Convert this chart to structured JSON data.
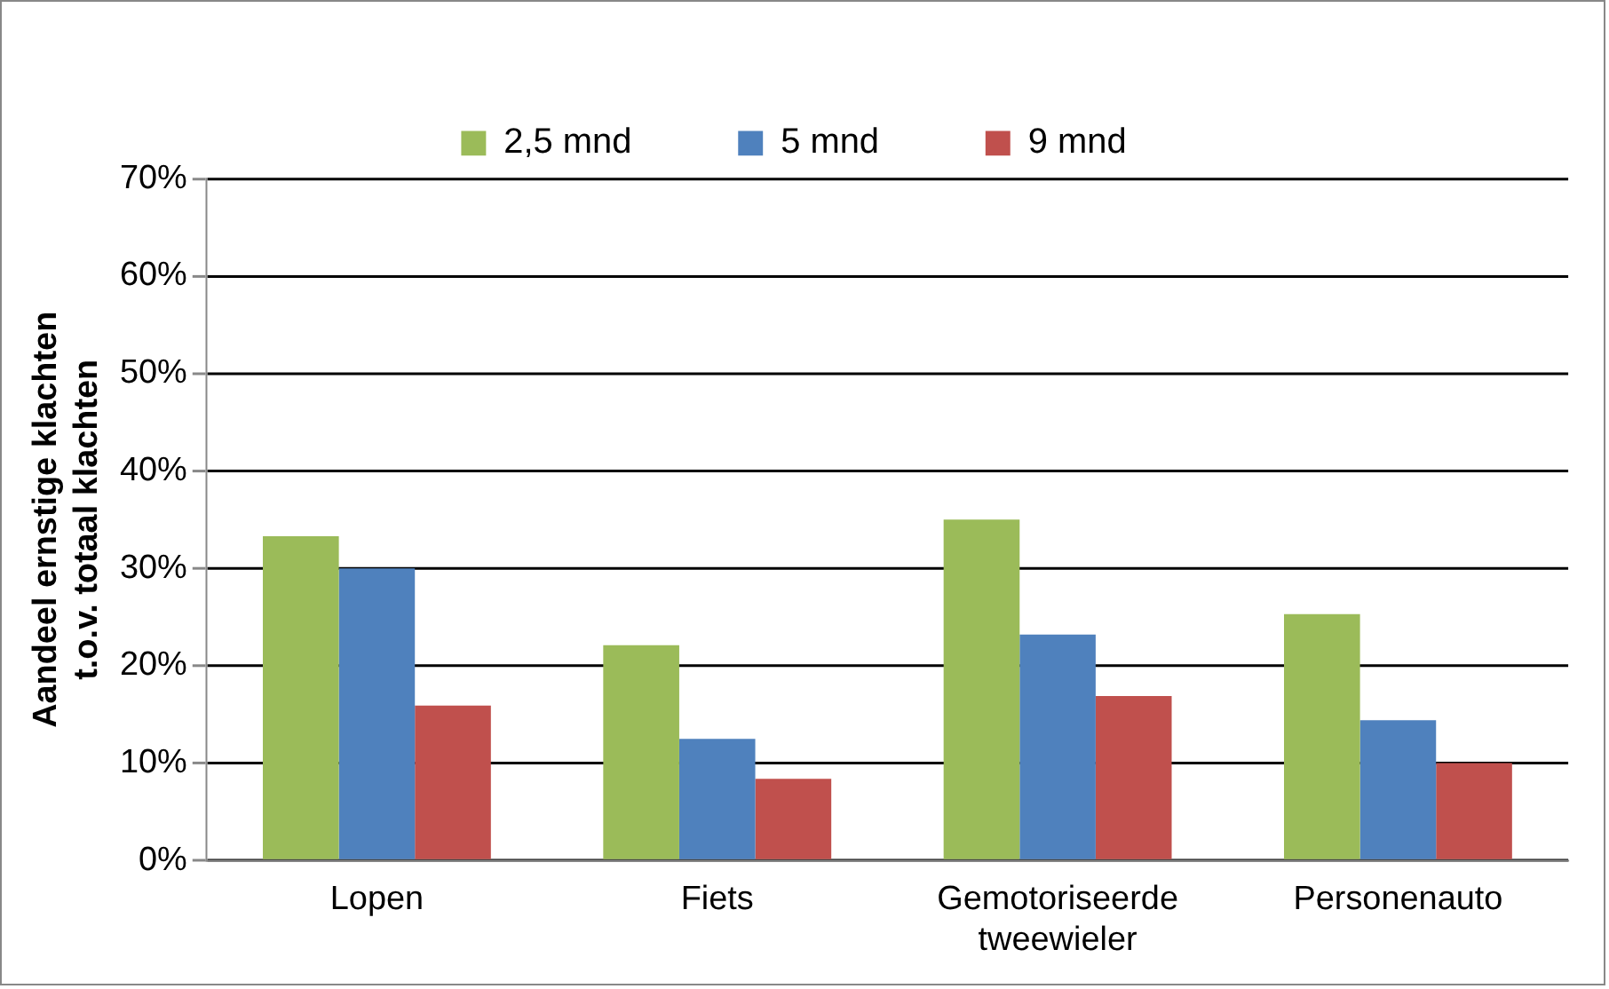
{
  "chart_data": {
    "type": "bar",
    "ylabel": "Aandeel ernstige klachten t.o.v. totaal klachten",
    "categories": [
      "Lopen",
      "Fiets",
      "Gemotoriseerde tweewieler",
      "Personenauto"
    ],
    "series": [
      {
        "name": "2,5 mnd",
        "color": "#9bbb59",
        "values": [
          33.3,
          22.1,
          35.0,
          25.3
        ]
      },
      {
        "name": "5 mnd",
        "color": "#4f81bd",
        "values": [
          30.0,
          12.5,
          23.2,
          14.4
        ]
      },
      {
        "name": "9 mnd",
        "color": "#c0504d",
        "values": [
          15.9,
          8.4,
          16.9,
          10.0
        ]
      }
    ],
    "ylim": [
      0,
      70
    ],
    "yticks": [
      {
        "value": 0,
        "label": "0%"
      },
      {
        "value": 10,
        "label": "10%"
      },
      {
        "value": 20,
        "label": "20%"
      },
      {
        "value": 30,
        "label": "30%"
      },
      {
        "value": 40,
        "label": "40%"
      },
      {
        "value": 50,
        "label": "50%"
      },
      {
        "value": 60,
        "label": "60%"
      },
      {
        "value": 70,
        "label": "70%"
      }
    ],
    "grid": "y",
    "legend": "top"
  }
}
